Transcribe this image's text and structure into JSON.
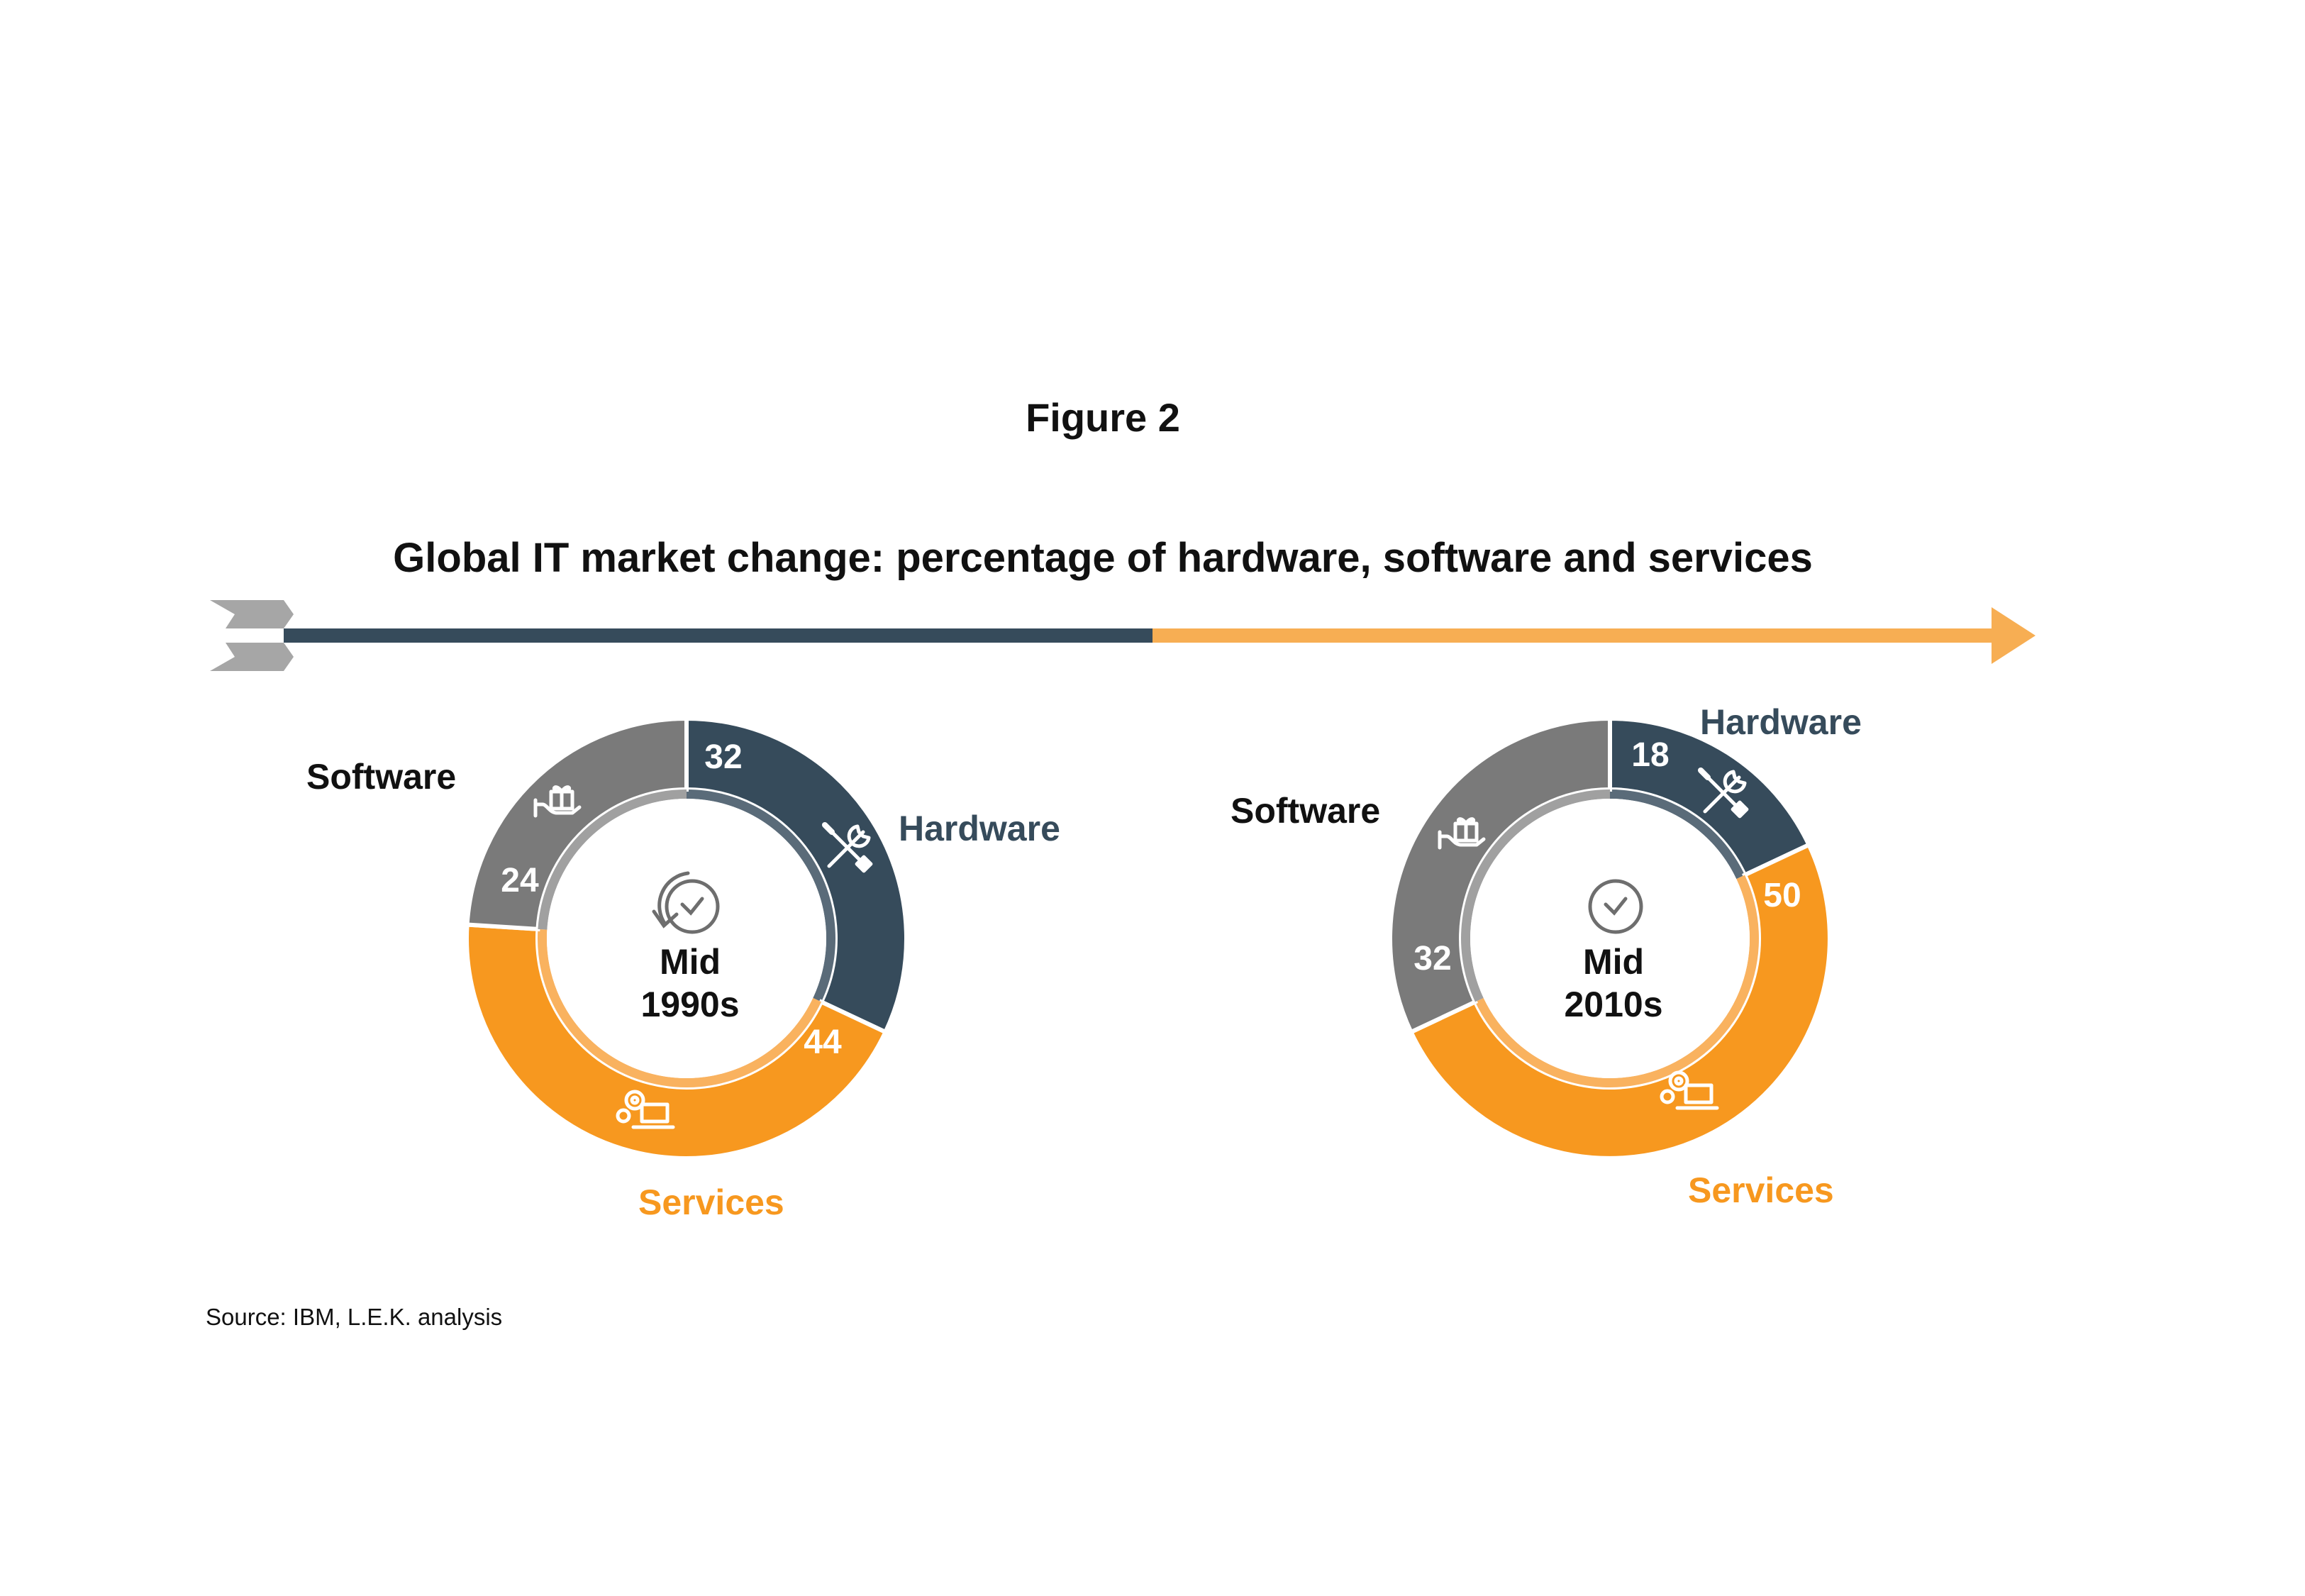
{
  "figure_label": "Figure 2",
  "title": "Global IT market change: percentage of hardware, software and services",
  "source": "Source: IBM, L.E.K. analysis",
  "colors": {
    "hardware": "#364B5B",
    "software": "#7A7A7A",
    "services": "#F7981F",
    "arrow_left": "#364B5B",
    "arrow_right": "#F7AE53",
    "tail": "#A6A6A6"
  },
  "chart_data": [
    {
      "type": "pie",
      "center_label": [
        "Mid",
        "1990s"
      ],
      "categories": [
        "Hardware",
        "Services",
        "Software"
      ],
      "values": [
        32,
        44,
        24
      ],
      "icons": [
        "wrench-screwdriver-icon",
        "gear-laptop-icon",
        "gift-hand-icon"
      ]
    },
    {
      "type": "pie",
      "center_label": [
        "Mid",
        "2010s"
      ],
      "categories": [
        "Hardware",
        "Services",
        "Software"
      ],
      "values": [
        18,
        50,
        32
      ],
      "icons": [
        "wrench-screwdriver-icon",
        "gear-laptop-icon",
        "gift-hand-icon"
      ]
    }
  ]
}
